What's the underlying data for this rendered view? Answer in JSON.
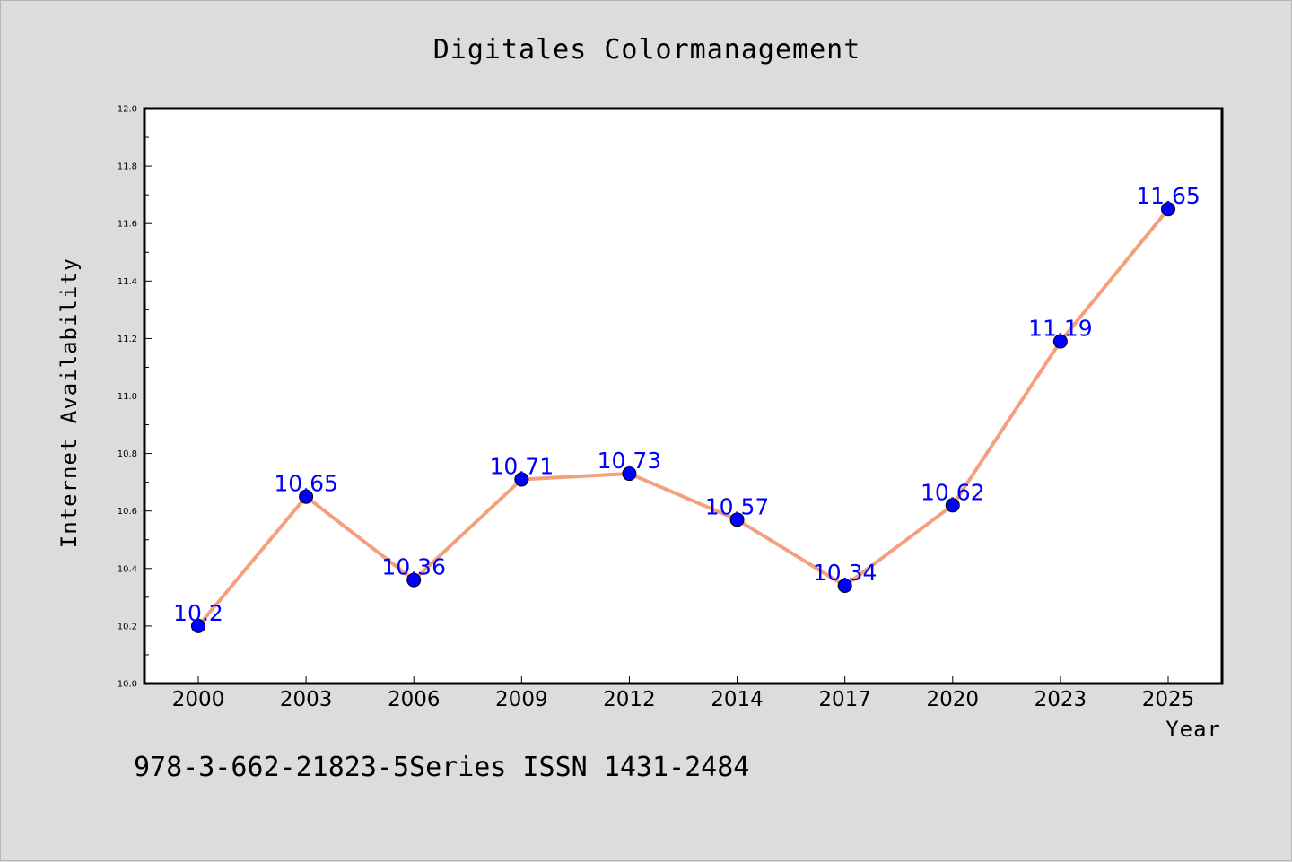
{
  "chart_data": {
    "type": "line",
    "title": "Digitales Colormanagement",
    "xlabel": "Year",
    "ylabel": "Internet Availability",
    "categories": [
      "2000",
      "2003",
      "2006",
      "2009",
      "2012",
      "2014",
      "2017",
      "2020",
      "2023",
      "2025"
    ],
    "series": [
      {
        "values": [
          10.2,
          10.65,
          10.36,
          10.71,
          10.73,
          10.57,
          10.34,
          10.62,
          11.19,
          11.65
        ],
        "labels": [
          "10.2",
          "10.65",
          "10.36",
          "10.71",
          "10.73",
          "10.57",
          "10.34",
          "10.62",
          "11.19",
          "11.65"
        ],
        "line_color": "#f4a07c",
        "marker_color": "#0000ff"
      }
    ],
    "ylim": [
      10.0,
      12.0
    ],
    "yticks": [
      "10.0",
      "10.2",
      "10.4",
      "10.6",
      "10.8",
      "11.0",
      "11.2",
      "11.4",
      "11.6",
      "11.8",
      "12.0"
    ],
    "grid": false,
    "legend": "none",
    "label_color": "#0000ff",
    "background": "#dcdcdc",
    "plot_background": "#ffffff"
  },
  "footnote": "978-3-662-21823-5Series ISSN 1431-2484"
}
